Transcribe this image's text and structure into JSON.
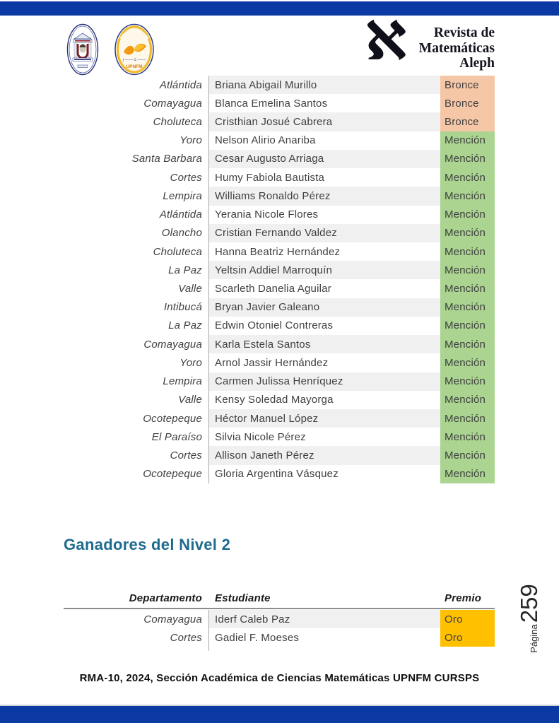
{
  "header": {
    "aleph_symbol": "ℵ",
    "journal_title_lines": [
      "Revista de",
      "Matemáticas",
      "Aleph"
    ],
    "logos": {
      "left_icon": "upnfm-university-seal",
      "right_icon": "math-section-seal",
      "right_label": "UPNFM"
    }
  },
  "table1": {
    "rows": [
      {
        "departamento": "Atlántida",
        "estudiante": "Briana Abigail Murillo",
        "premio": "Bronce"
      },
      {
        "departamento": "Comayagua",
        "estudiante": "Blanca Emelina Santos",
        "premio": "Bronce"
      },
      {
        "departamento": "Choluteca",
        "estudiante": "Cristhian Josué Cabrera",
        "premio": "Bronce"
      },
      {
        "departamento": "Yoro",
        "estudiante": "Nelson Alirio Anariba",
        "premio": "Mención"
      },
      {
        "departamento": "Santa Barbara",
        "estudiante": "Cesar Augusto Arriaga",
        "premio": "Mención"
      },
      {
        "departamento": "Cortes",
        "estudiante": "Humy Fabiola Bautista",
        "premio": "Mención"
      },
      {
        "departamento": "Lempira",
        "estudiante": "Williams Ronaldo Pérez",
        "premio": "Mención"
      },
      {
        "departamento": "Atlántida",
        "estudiante": "Yerania Nicole Flores",
        "premio": "Mención"
      },
      {
        "departamento": "Olancho",
        "estudiante": "Cristian Fernando Valdez",
        "premio": "Mención"
      },
      {
        "departamento": "Choluteca",
        "estudiante": "Hanna Beatriz Hernández",
        "premio": "Mención"
      },
      {
        "departamento": "La Paz",
        "estudiante": "Yeltsin Addiel Marroquín",
        "premio": "Mención"
      },
      {
        "departamento": "Valle",
        "estudiante": "Scarleth Danelia Aguilar",
        "premio": "Mención"
      },
      {
        "departamento": "Intibucá",
        "estudiante": "Bryan Javier Galeano",
        "premio": "Mención"
      },
      {
        "departamento": "La Paz",
        "estudiante": "Edwin Otoniel Contreras",
        "premio": "Mención"
      },
      {
        "departamento": "Comayagua",
        "estudiante": "Karla Estela Santos",
        "premio": "Mención"
      },
      {
        "departamento": "Yoro",
        "estudiante": "Arnol Jassir Hernández",
        "premio": "Mención"
      },
      {
        "departamento": "Lempira",
        "estudiante": "Carmen Julissa Henríquez",
        "premio": "Mención"
      },
      {
        "departamento": "Valle",
        "estudiante": "Kensy Soledad Mayorga",
        "premio": "Mención"
      },
      {
        "departamento": "Ocotepeque",
        "estudiante": "Héctor Manuel López",
        "premio": "Mención"
      },
      {
        "departamento": "El Paraíso",
        "estudiante": "Silvia Nicole Pérez",
        "premio": "Mención"
      },
      {
        "departamento": "Cortes",
        "estudiante": "Allison Janeth Pérez",
        "premio": "Mención"
      },
      {
        "departamento": "Ocotepeque",
        "estudiante": "Gloria Argentina Vásquez",
        "premio": "Mención"
      }
    ]
  },
  "section2": {
    "title": "Ganadores del Nivel 2"
  },
  "table2": {
    "headers": {
      "departamento": "Departamento",
      "estudiante": "Estudiante",
      "premio": "Premio"
    },
    "rows": [
      {
        "departamento": "Comayagua",
        "estudiante": "Iderf Caleb Paz",
        "premio": "Oro"
      },
      {
        "departamento": "Cortes",
        "estudiante": "Gadiel F. Moeses",
        "premio": "Oro"
      }
    ]
  },
  "page_number": {
    "label": "Página",
    "number": "259"
  },
  "footer": {
    "text": "RMA-10, 2024, Sección Académica de Ciencias Matemáticas UPNFM CURSPS"
  },
  "colors": {
    "bar_blue": "#0c3aa5",
    "row_stripe_gray": "#f0f0f0",
    "separator_gray": "#a6a6a6",
    "heading_teal": "#1f6b8e",
    "bronce_bg": "#f6c7a6",
    "mencion_bg": "#aad490",
    "oro_bg": "#ffc000"
  }
}
